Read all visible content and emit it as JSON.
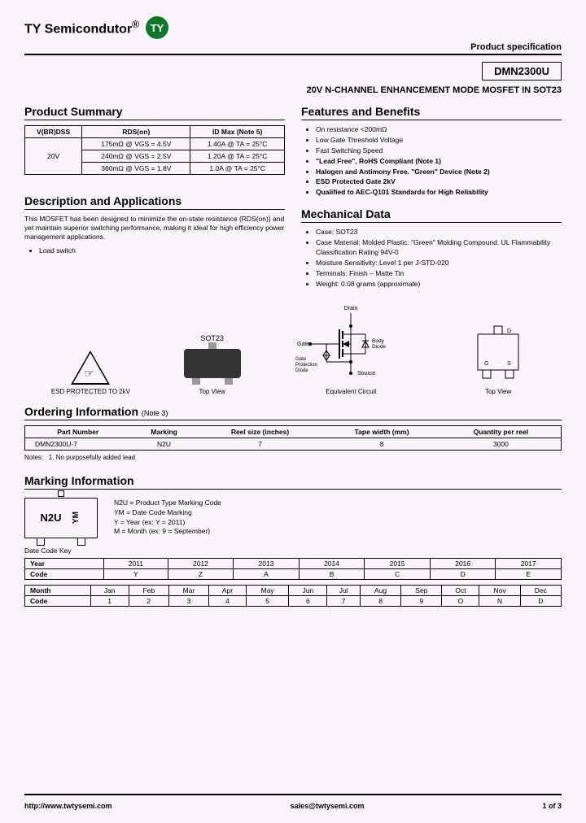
{
  "header": {
    "company": "TY Semicondutor",
    "logo_text": "TY",
    "logo_bg": "#0a7a2a",
    "logo_fg": "#ffffff",
    "spec_label": "Product specification"
  },
  "part_number": "DMN2300U",
  "subtitle": "20V N-CHANNEL ENHANCEMENT MODE MOSFET IN SOT23",
  "summary": {
    "title": "Product Summary",
    "headers": [
      "V(BR)DSS",
      "RDS(on)",
      "ID Max (Note 5)"
    ],
    "vbr": "20V",
    "rows": [
      {
        "rds": "175mΩ @ VGS = 4.5V",
        "id": "1.40A @ TA = 25°C"
      },
      {
        "rds": "240mΩ @ VGS = 2.5V",
        "id": "1.20A @ TA = 25°C"
      },
      {
        "rds": "360mΩ @ VGS = 1.8V",
        "id": "1.0A @ TA = 25°C"
      }
    ]
  },
  "features": {
    "title": "Features and Benefits",
    "items": [
      "On resistance <200mΩ",
      "Low Gate Threshold Voltage",
      "Fast Switching Speed",
      "\"Lead Free\", RoHS Compliant (Note 1)",
      "Halogen and Antimony Free. \"Green\" Device (Note 2)",
      "ESD Protected Gate 2kV",
      "Qualified to AEC-Q101 Standards for High Reliability"
    ],
    "bold_indices": [
      3,
      4,
      5,
      6
    ]
  },
  "description": {
    "title": "Description and Applications",
    "text": "This MOSFET has been designed to minimize the on-state resistance (RDS(on)) and yet maintain superior switching performance, making it ideal for high efficiency power management applications.",
    "apps": [
      "Load switch"
    ]
  },
  "mechanical": {
    "title": "Mechanical Data",
    "items": [
      "Case: SOT23",
      "Case Material: Molded Plastic. \"Green\" Molding Compound. UL Flammability Classification Rating 94V-0",
      "Moisture Sensitivity: Level 1 per J-STD-020",
      "Terminals: Finish – Matte Tin",
      "Weight: 0.08 grams (approximate)"
    ]
  },
  "diagrams": {
    "esd_caption": "ESD PROTECTED TO 2kV",
    "sot23_label": "SOT23",
    "sot23_caption": "Top View",
    "circuit_caption": "Equivalent Circuit",
    "circuit_labels": {
      "drain": "Drain",
      "gate": "Gate",
      "source": "Source",
      "body": "Body\nDiode",
      "gpd": "Gate\nProtection\nDiode"
    },
    "pinout_caption": "Top View",
    "pinout_labels": {
      "d": "D",
      "g": "G",
      "s": "S"
    }
  },
  "ordering": {
    "title": "Ordering Information",
    "title_note": "(Note 3)",
    "headers": [
      "Part Number",
      "Marking",
      "Reel size (inches)",
      "Tape width (mm)",
      "Quantity per reel"
    ],
    "row": [
      "DMN2300U-7",
      "N2U",
      "7",
      "8",
      "3000"
    ],
    "notes_label": "Notes:",
    "note": "1. No purposefully added lead"
  },
  "marking": {
    "title": "Marking Information",
    "chip_main": "N2U",
    "chip_side": "YM",
    "desc": [
      "N2U = Product Type Marking Code",
      "YM = Date Code Marking",
      "Y = Year (ex: Y = 2011)",
      "M = Month (ex: 9 = September)"
    ],
    "datecode_label": "Date Code Key",
    "year_header": "Year",
    "years": [
      "2011",
      "2012",
      "2013",
      "2014",
      "2015",
      "2016",
      "2017"
    ],
    "year_code_header": "Code",
    "year_codes": [
      "Y",
      "Z",
      "A",
      "B",
      "C",
      "D",
      "E"
    ],
    "month_header": "Month",
    "months": [
      "Jan",
      "Feb",
      "Mar",
      "Apr",
      "May",
      "Jun",
      "Jul",
      "Aug",
      "Sep",
      "Oct",
      "Nov",
      "Dec"
    ],
    "month_code_header": "Code",
    "month_codes": [
      "1",
      "2",
      "3",
      "4",
      "5",
      "6",
      "7",
      "8",
      "9",
      "O",
      "N",
      "D"
    ]
  },
  "footer": {
    "url": "http://www.twtysemi.com",
    "email": "sales@twtysemi.com",
    "page": "1 of 3"
  },
  "colors": {
    "page_bg": "#faf5fa",
    "text": "#000000",
    "rule": "#000000",
    "pkg_body": "#333333",
    "pkg_lead": "#999999"
  }
}
